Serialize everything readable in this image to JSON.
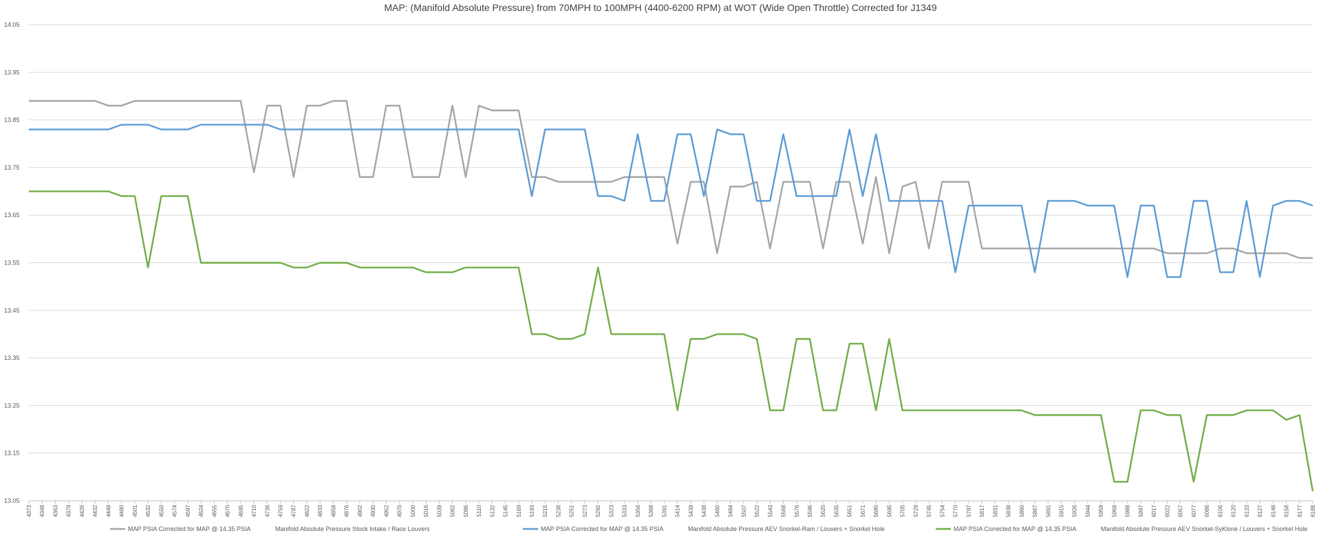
{
  "chart_data": {
    "type": "line",
    "title": "MAP: (Manifold Absolute Pressure) from 70MPH to 100MPH (4400-6200 RPM) at WOT (Wide Open Throttle) Corrected for J1349",
    "categories": [
      "4373",
      "4348",
      "4363",
      "4379",
      "4426",
      "4432",
      "4449",
      "4480",
      "4501",
      "4532",
      "4550",
      "4574",
      "4597",
      "4624",
      "4655",
      "4670",
      "4695",
      "4710",
      "4738",
      "4759",
      "4787",
      "4822",
      "4833",
      "4858",
      "4876",
      "4902",
      "4930",
      "4952",
      "4970",
      "5000",
      "5016",
      "5039",
      "5062",
      "5086",
      "5110",
      "5132",
      "5145",
      "5169",
      "5193",
      "5215",
      "5238",
      "5251",
      "5273",
      "5292",
      "5323",
      "5333",
      "5356",
      "5368",
      "5391",
      "5414",
      "5439",
      "5438",
      "5460",
      "5484",
      "5507",
      "5522",
      "5543",
      "5568",
      "5576",
      "5596",
      "5620",
      "5635",
      "5651",
      "5671",
      "5680",
      "5695",
      "5705",
      "5729",
      "5745",
      "5754",
      "5770",
      "5797",
      "5817",
      "5831",
      "5838",
      "5860",
      "5867",
      "5891",
      "5915",
      "5926",
      "5944",
      "5959",
      "5968",
      "5988",
      "5997",
      "6017",
      "6022",
      "6057",
      "6077",
      "6086",
      "6106",
      "6120",
      "6133",
      "6127",
      "6148",
      "6158",
      "6177",
      "6188"
    ],
    "series": [
      {
        "name": "MAP PSIA Corrected for MAP @ 14.35 PSIA",
        "label": "Manifold Absolute Pressure Stock Intake / Race Louvers",
        "color": "#a5a5a5",
        "values": [
          13.89,
          13.89,
          13.89,
          13.89,
          13.89,
          13.89,
          13.88,
          13.88,
          13.89,
          13.89,
          13.89,
          13.89,
          13.89,
          13.89,
          13.89,
          13.89,
          13.89,
          13.74,
          13.88,
          13.88,
          13.73,
          13.88,
          13.88,
          13.89,
          13.89,
          13.73,
          13.73,
          13.88,
          13.88,
          13.73,
          13.73,
          13.73,
          13.88,
          13.73,
          13.88,
          13.87,
          13.87,
          13.87,
          13.73,
          13.73,
          13.72,
          13.72,
          13.72,
          13.72,
          13.72,
          13.73,
          13.73,
          13.73,
          13.73,
          13.59,
          13.72,
          13.72,
          13.57,
          13.71,
          13.71,
          13.72,
          13.58,
          13.72,
          13.72,
          13.72,
          13.58,
          13.72,
          13.72,
          13.59,
          13.73,
          13.57,
          13.71,
          13.72,
          13.58,
          13.72,
          13.72,
          13.72,
          13.58,
          13.58,
          13.58,
          13.58,
          13.58,
          13.58,
          13.58,
          13.58,
          13.58,
          13.58,
          13.58,
          13.58,
          13.58,
          13.58,
          13.57,
          13.57,
          13.57,
          13.57,
          13.58,
          13.58,
          13.57,
          13.57,
          13.57,
          13.57,
          13.56,
          13.56
        ]
      },
      {
        "name": "MAP PSIA Corrected for MAP @ 14.35 PSIA",
        "label": "Manifold Absolute Pressure AEV Snorkel-Ram / Louvers + Snorkel Hole",
        "color": "#5b9bd5",
        "values": [
          13.83,
          13.83,
          13.83,
          13.83,
          13.83,
          13.83,
          13.83,
          13.84,
          13.84,
          13.84,
          13.83,
          13.83,
          13.83,
          13.84,
          13.84,
          13.84,
          13.84,
          13.84,
          13.84,
          13.83,
          13.83,
          13.83,
          13.83,
          13.83,
          13.83,
          13.83,
          13.83,
          13.83,
          13.83,
          13.83,
          13.83,
          13.83,
          13.83,
          13.83,
          13.83,
          13.83,
          13.83,
          13.83,
          13.69,
          13.83,
          13.83,
          13.83,
          13.83,
          13.69,
          13.69,
          13.68,
          13.82,
          13.68,
          13.68,
          13.82,
          13.82,
          13.69,
          13.83,
          13.82,
          13.82,
          13.68,
          13.68,
          13.82,
          13.69,
          13.69,
          13.69,
          13.69,
          13.83,
          13.69,
          13.82,
          13.68,
          13.68,
          13.68,
          13.68,
          13.68,
          13.53,
          13.67,
          13.67,
          13.67,
          13.67,
          13.67,
          13.53,
          13.68,
          13.68,
          13.68,
          13.67,
          13.67,
          13.67,
          13.52,
          13.67,
          13.67,
          13.52,
          13.52,
          13.68,
          13.68,
          13.53,
          13.53,
          13.68,
          13.52,
          13.67,
          13.68,
          13.68,
          13.67
        ]
      },
      {
        "name": "MAP PSIA Corrected for MAP @ 14.35 PSIA",
        "label": "Manifold Absolute Pressure AEV Snorkel-SyKlone / Louvers + Snorkel Hole",
        "color": "#70ad47",
        "values": [
          13.7,
          13.7,
          13.7,
          13.7,
          13.7,
          13.7,
          13.7,
          13.69,
          13.69,
          13.54,
          13.69,
          13.69,
          13.69,
          13.55,
          13.55,
          13.55,
          13.55,
          13.55,
          13.55,
          13.55,
          13.54,
          13.54,
          13.55,
          13.55,
          13.55,
          13.54,
          13.54,
          13.54,
          13.54,
          13.54,
          13.53,
          13.53,
          13.53,
          13.54,
          13.54,
          13.54,
          13.54,
          13.54,
          13.4,
          13.4,
          13.39,
          13.39,
          13.4,
          13.54,
          13.4,
          13.4,
          13.4,
          13.4,
          13.4,
          13.24,
          13.39,
          13.39,
          13.4,
          13.4,
          13.4,
          13.39,
          13.24,
          13.24,
          13.39,
          13.39,
          13.24,
          13.24,
          13.38,
          13.38,
          13.24,
          13.39,
          13.24,
          13.24,
          13.24,
          13.24,
          13.24,
          13.24,
          13.24,
          13.24,
          13.24,
          13.24,
          13.23,
          13.23,
          13.23,
          13.23,
          13.23,
          13.23,
          13.09,
          13.09,
          13.24,
          13.24,
          13.23,
          13.23,
          13.09,
          13.23,
          13.23,
          13.23,
          13.24,
          13.24,
          13.24,
          13.22,
          13.23,
          13.07
        ]
      }
    ],
    "ylim": [
      13.05,
      14.05
    ],
    "yticks": [
      13.05,
      13.15,
      13.25,
      13.35,
      13.45,
      13.55,
      13.65,
      13.75,
      13.85,
      13.95,
      14.05
    ],
    "grid": true
  }
}
